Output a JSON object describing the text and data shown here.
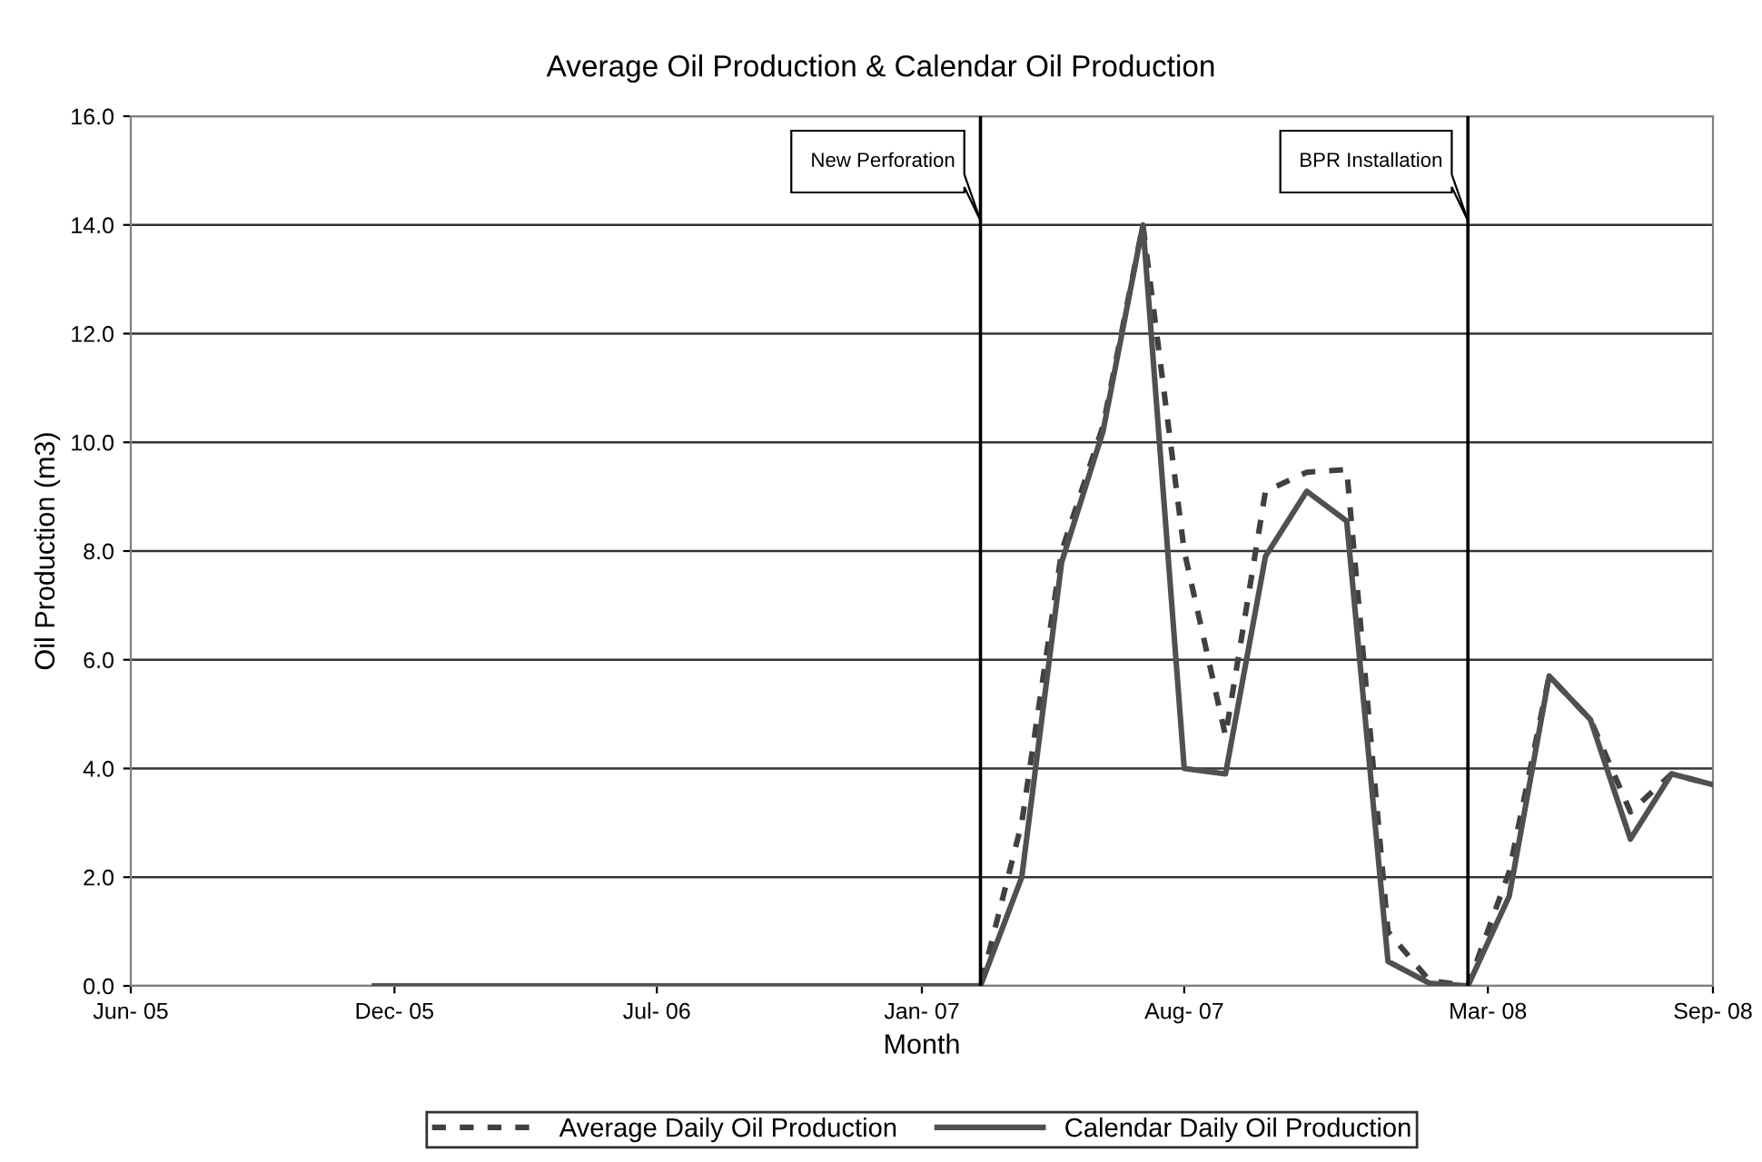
{
  "chart_data": {
    "type": "line",
    "title": "Average Oil Production & Calendar Oil Production",
    "xlabel": "Month",
    "ylabel": "Oil Production (m3)",
    "x": [
      "2005-12",
      "2006-01",
      "2006-02",
      "2006-03",
      "2006-04",
      "2006-05",
      "2006-06",
      "2006-07",
      "2006-08",
      "2006-09",
      "2006-10",
      "2006-11",
      "2006-12",
      "2007-01",
      "2007-02",
      "2007-03",
      "2007-04",
      "2007-05",
      "2007-06",
      "2007-07",
      "2007-08",
      "2007-09",
      "2007-10",
      "2007-11",
      "2007-12",
      "2008-01",
      "2008-02",
      "2008-03",
      "2008-04",
      "2008-05",
      "2008-06",
      "2008-07",
      "2008-08",
      "2008-09"
    ],
    "series": [
      {
        "name": "Average Daily Oil Production",
        "color": "#404040",
        "line_style": "dashed",
        "values": [
          0,
          0,
          0,
          0,
          0,
          0,
          0,
          0,
          0,
          0,
          0,
          0,
          0,
          0,
          0,
          0,
          3.0,
          8.0,
          10.3,
          14.0,
          8.0,
          4.6,
          9.1,
          9.45,
          9.5,
          1.0,
          0.1,
          0,
          2.1,
          5.7,
          4.9,
          3.2,
          3.9,
          3.7
        ]
      },
      {
        "name": "Calendar Daily Oil Production",
        "color": "#505050",
        "line_style": "solid",
        "values": [
          0,
          0,
          0,
          0,
          0,
          0,
          0,
          0,
          0,
          0,
          0,
          0,
          0,
          0,
          0,
          0,
          2.0,
          7.8,
          10.2,
          14.0,
          4.0,
          3.9,
          7.9,
          9.1,
          8.55,
          0.45,
          0.05,
          0,
          1.65,
          5.7,
          4.9,
          2.7,
          3.9,
          3.7
        ]
      }
    ],
    "xlim": [
      "2005-06-01",
      "2008-09-01"
    ],
    "xticks": [
      {
        "value": "2005-06-01",
        "label": "Jun- 05"
      },
      {
        "value": "2005-12-16",
        "label": "Dec- 05"
      },
      {
        "value": "2006-07-01",
        "label": "Jul- 06"
      },
      {
        "value": "2007-01-16",
        "label": "Jan- 07"
      },
      {
        "value": "2007-08-01",
        "label": "Aug- 07"
      },
      {
        "value": "2008-03-16",
        "label": "Mar- 08"
      },
      {
        "value": "2008-09-01",
        "label": "Sep- 08"
      }
    ],
    "ylim": [
      0,
      16
    ],
    "yticks": [
      {
        "value": 0,
        "label": "0.0"
      },
      {
        "value": 2,
        "label": "2.0"
      },
      {
        "value": 4,
        "label": "4.0"
      },
      {
        "value": 6,
        "label": "6.0"
      },
      {
        "value": 8,
        "label": "8.0"
      },
      {
        "value": 10,
        "label": "10.0"
      },
      {
        "value": 12,
        "label": "12.0"
      },
      {
        "value": 14,
        "label": "14.0"
      },
      {
        "value": 16,
        "label": "16.0"
      }
    ],
    "grid": "y",
    "legend": "bottom",
    "ref_lines": [
      {
        "axis": "x",
        "value": "2007-03",
        "label": "New Perforation",
        "color": "#000000"
      },
      {
        "axis": "x",
        "value": "2008-03",
        "label": "BPR Installation",
        "color": "#000000"
      }
    ]
  }
}
